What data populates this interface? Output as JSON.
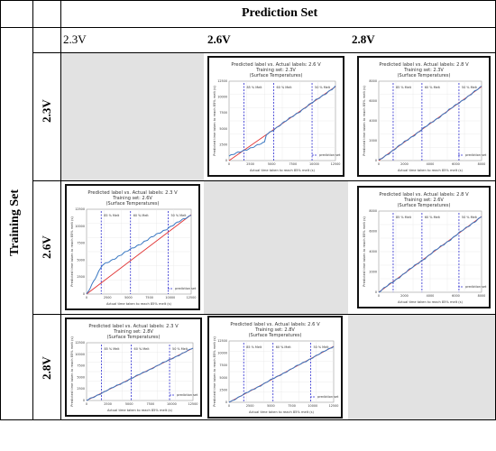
{
  "headers": {
    "prediction_set": "Prediction Set",
    "training_set": "Training Set",
    "cols": [
      "2.3V",
      "2.6V",
      "2.8V"
    ],
    "rows": [
      "2.3V",
      "2.6V",
      "2.8V"
    ]
  },
  "plots": [
    {
      "cell": "r1c2",
      "title": "Predicted label vs. Actual labels: 2.6 V",
      "subtitle": "Training set: 2.3V",
      "subtitle2": "(Surface Temperatures)",
      "xlabel": "Actual time taken to reach 85% melt (s)",
      "ylabel": "Predicted time taken to reach 85% melt (s)",
      "markers": [
        "85 % Melt",
        "60 % Melt",
        "50 % Melt"
      ],
      "legend": "prediction set",
      "xticks": [
        "0",
        "2500",
        "5000",
        "7500",
        "10000",
        "12500"
      ],
      "yticks": [
        "0",
        "2500",
        "5000",
        "7500",
        "10000",
        "12500"
      ]
    },
    {
      "cell": "r1c3",
      "title": "Predicted label vs. Actual labels: 2.8 V",
      "subtitle": "Training set: 2.3V",
      "subtitle2": "(Surface Temperatures)",
      "xlabel": "Actual time taken to reach 85% melt (s)",
      "ylabel": "Predicted time taken to reach 85% melt (s)",
      "markers": [
        "85 % Melt",
        "60 % Melt",
        "50 % Melt"
      ],
      "legend": "prediction set",
      "xticks": [
        "0",
        "2000",
        "4000",
        "6000",
        "8000"
      ],
      "yticks": [
        "0",
        "2000",
        "4000",
        "6000",
        "8000"
      ]
    },
    {
      "cell": "r2c1",
      "title": "Predicted label vs. Actual labels: 2.3 V",
      "subtitle": "Training set: 2.6V",
      "subtitle2": "(Surface Temperatures)",
      "xlabel": "Actual time taken to reach 85% melt (s)",
      "ylabel": "Predicted time taken to reach 85% melt (s)",
      "markers": [
        "85 % Melt",
        "60 % Melt",
        "50 % Melt"
      ],
      "legend": "prediction set",
      "xticks": [
        "0",
        "2500",
        "5000",
        "7500",
        "10000",
        "12500"
      ],
      "yticks": [
        "0",
        "2500",
        "5000",
        "7500",
        "10000",
        "12500"
      ]
    },
    {
      "cell": "r2c3",
      "title": "Predicted label vs. Actual labels: 2.8 V",
      "subtitle": "Training set: 2.6V",
      "subtitle2": "(Surface Temperatures)",
      "xlabel": "Actual time taken to reach 85% melt (s)",
      "ylabel": "Predicted time taken to reach 85% melt (s)",
      "markers": [
        "85 % Melt",
        "60 % Melt",
        "50 % Melt"
      ],
      "legend": "prediction set",
      "xticks": [
        "0",
        "2000",
        "4000",
        "6000",
        "8000"
      ],
      "yticks": [
        "0",
        "2000",
        "4000",
        "6000",
        "8000"
      ]
    },
    {
      "cell": "r3c1",
      "title": "Predicted label vs. Actual labels: 2.3 V",
      "subtitle": "Training set: 2.8V",
      "subtitle2": "(Surface Temperatures)",
      "xlabel": "Actual time taken to reach 85% melt (s)",
      "ylabel": "Predicted time taken to reach 85% melt (s)",
      "markers": [
        "85 % Melt",
        "60 % Melt",
        "50 % Melt"
      ],
      "legend": "prediction set",
      "xticks": [
        "0",
        "2500",
        "5000",
        "7500",
        "10000",
        "12500"
      ],
      "yticks": [
        "0",
        "2500",
        "5000",
        "7500",
        "10000",
        "12500"
      ]
    },
    {
      "cell": "r3c2",
      "title": "Predicted label vs. Actual labels: 2.6 V",
      "subtitle": "Training set: 2.8V",
      "subtitle2": "(Surface Temperatures)",
      "xlabel": "Actual time taken to reach 85% melt (s)",
      "ylabel": "Predicted time taken to reach 85% melt (s)",
      "markers": [
        "85 % Melt",
        "60 % Melt",
        "50 % Melt"
      ],
      "legend": "prediction set",
      "xticks": [
        "0",
        "2500",
        "5000",
        "7500",
        "10000",
        "12500"
      ],
      "yticks": [
        "0",
        "2500",
        "5000",
        "7500",
        "10000",
        "12500"
      ]
    }
  ],
  "colors": {
    "prediction": "#3a78c2",
    "ideal": "#e03030",
    "marker": "#2a2ad0",
    "empty_cell": "#e2e2e2"
  }
}
